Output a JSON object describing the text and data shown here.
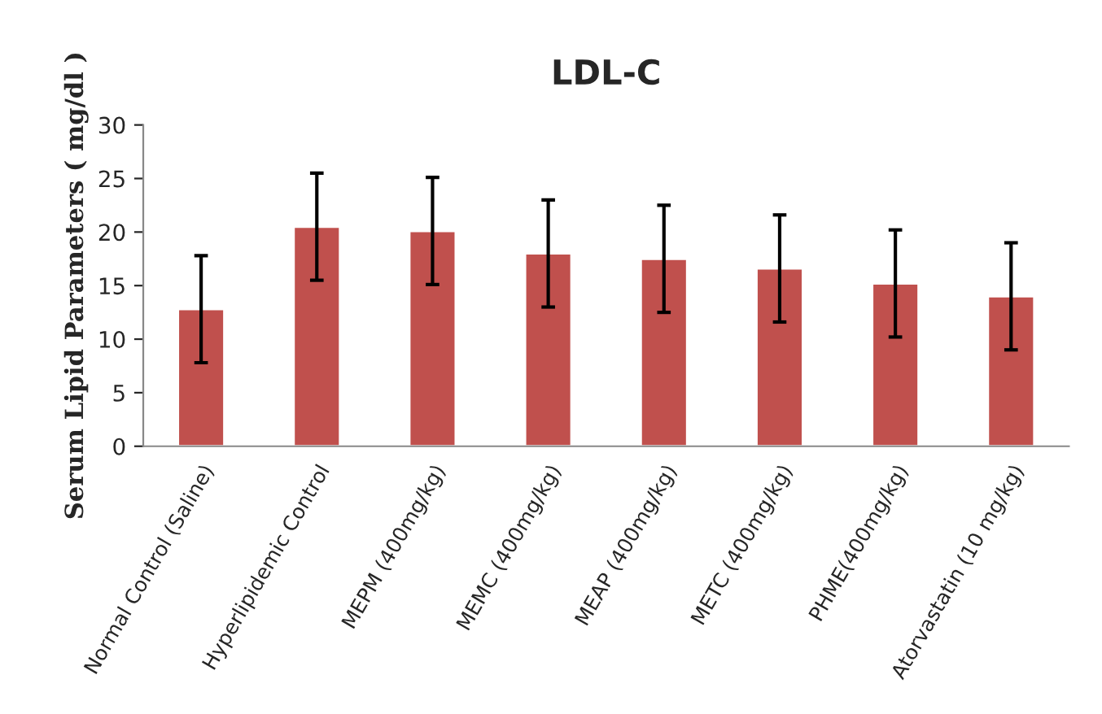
{
  "chart_data": {
    "type": "bar",
    "title": "LDL-C",
    "ylabel": "Serum Lipid Parameters ( mg/dl )",
    "categories": [
      "Normal Control (Saline)",
      "Hyperlipidemic Control",
      "MEPM (400mg/kg)",
      "MEMC (400mg/kg)",
      "MEAP (400mg/kg)",
      "METC (400mg/kg)",
      "PHME(400mg/kg)",
      "Atorvastatin (10 mg/kg)"
    ],
    "values": [
      12.8,
      20.5,
      20.1,
      18.0,
      17.5,
      16.6,
      15.2,
      14.0
    ],
    "errors": [
      5,
      5,
      5,
      5,
      5,
      5,
      5,
      5
    ],
    "color": "#c0504d",
    "ylim": [
      0,
      30
    ],
    "yticks": [
      0,
      5,
      10,
      15,
      20,
      25,
      30
    ],
    "grid": false
  }
}
